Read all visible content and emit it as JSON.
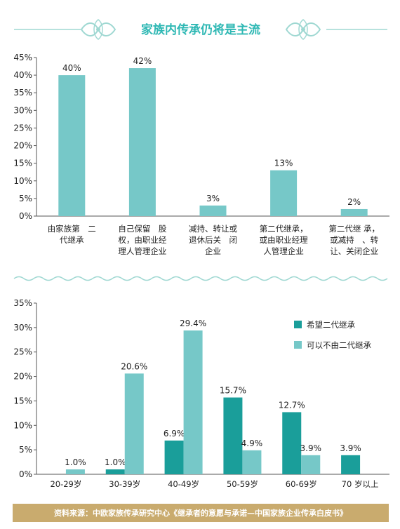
{
  "title": "家族内传承仍将是主流",
  "colors": {
    "accent": "#2fb8b4",
    "ornament": "#9fd8d2",
    "bar_light": "#76c8c8",
    "bar_dark": "#1a9e9a",
    "footer_bg": "#c9ab6e"
  },
  "source": "资料来源：中欧家族传承研究中心《继承者的意愿与承诺—中国家族企业传承白皮书》",
  "chart_data": [
    {
      "type": "bar",
      "title": "",
      "ylim": [
        0,
        45
      ],
      "yticks": [
        "0%",
        "5%",
        "10%",
        "15%",
        "20%",
        "25%",
        "30%",
        "35%",
        "40%",
        "45%"
      ],
      "categories": [
        [
          "由家族第　二",
          "代继承"
        ],
        [
          "自己保留　股",
          "权，由职业经",
          "理人管理企业"
        ],
        [
          "减持、转让或",
          "退休后关　闭",
          "企业"
        ],
        [
          "第二代继承，",
          "或由职业经理",
          "人管理企业"
        ],
        [
          "第二代继 承，",
          "或减持　、转",
          "让、关闭企业"
        ]
      ],
      "values": [
        40,
        42,
        3,
        13,
        2
      ],
      "value_labels": [
        "40%",
        "42%",
        "3%",
        "13%",
        "2%"
      ]
    },
    {
      "type": "bar",
      "title": "",
      "ylim": [
        0,
        35
      ],
      "yticks": [
        "0%",
        "5%",
        "10%",
        "15%",
        "20%",
        "25%",
        "30%",
        "35%"
      ],
      "categories": [
        "20-29岁",
        "30-39岁",
        "40-49岁",
        "50-59岁",
        "60-69岁",
        "70 岁以上"
      ],
      "legend_position": "right",
      "series": [
        {
          "name": "希望二代继承",
          "values": [
            null,
            1.0,
            6.9,
            15.7,
            12.7,
            3.9
          ],
          "value_labels": [
            "",
            "1.0%",
            "6.9%",
            "15.7%",
            "12.7%",
            "3.9%"
          ]
        },
        {
          "name": "可以不由二代继承",
          "values": [
            1.0,
            20.6,
            29.4,
            4.9,
            3.9,
            null
          ],
          "value_labels": [
            "1.0%",
            "20.6%",
            "29.4%",
            "4.9%",
            "3.9%",
            ""
          ]
        }
      ]
    }
  ]
}
